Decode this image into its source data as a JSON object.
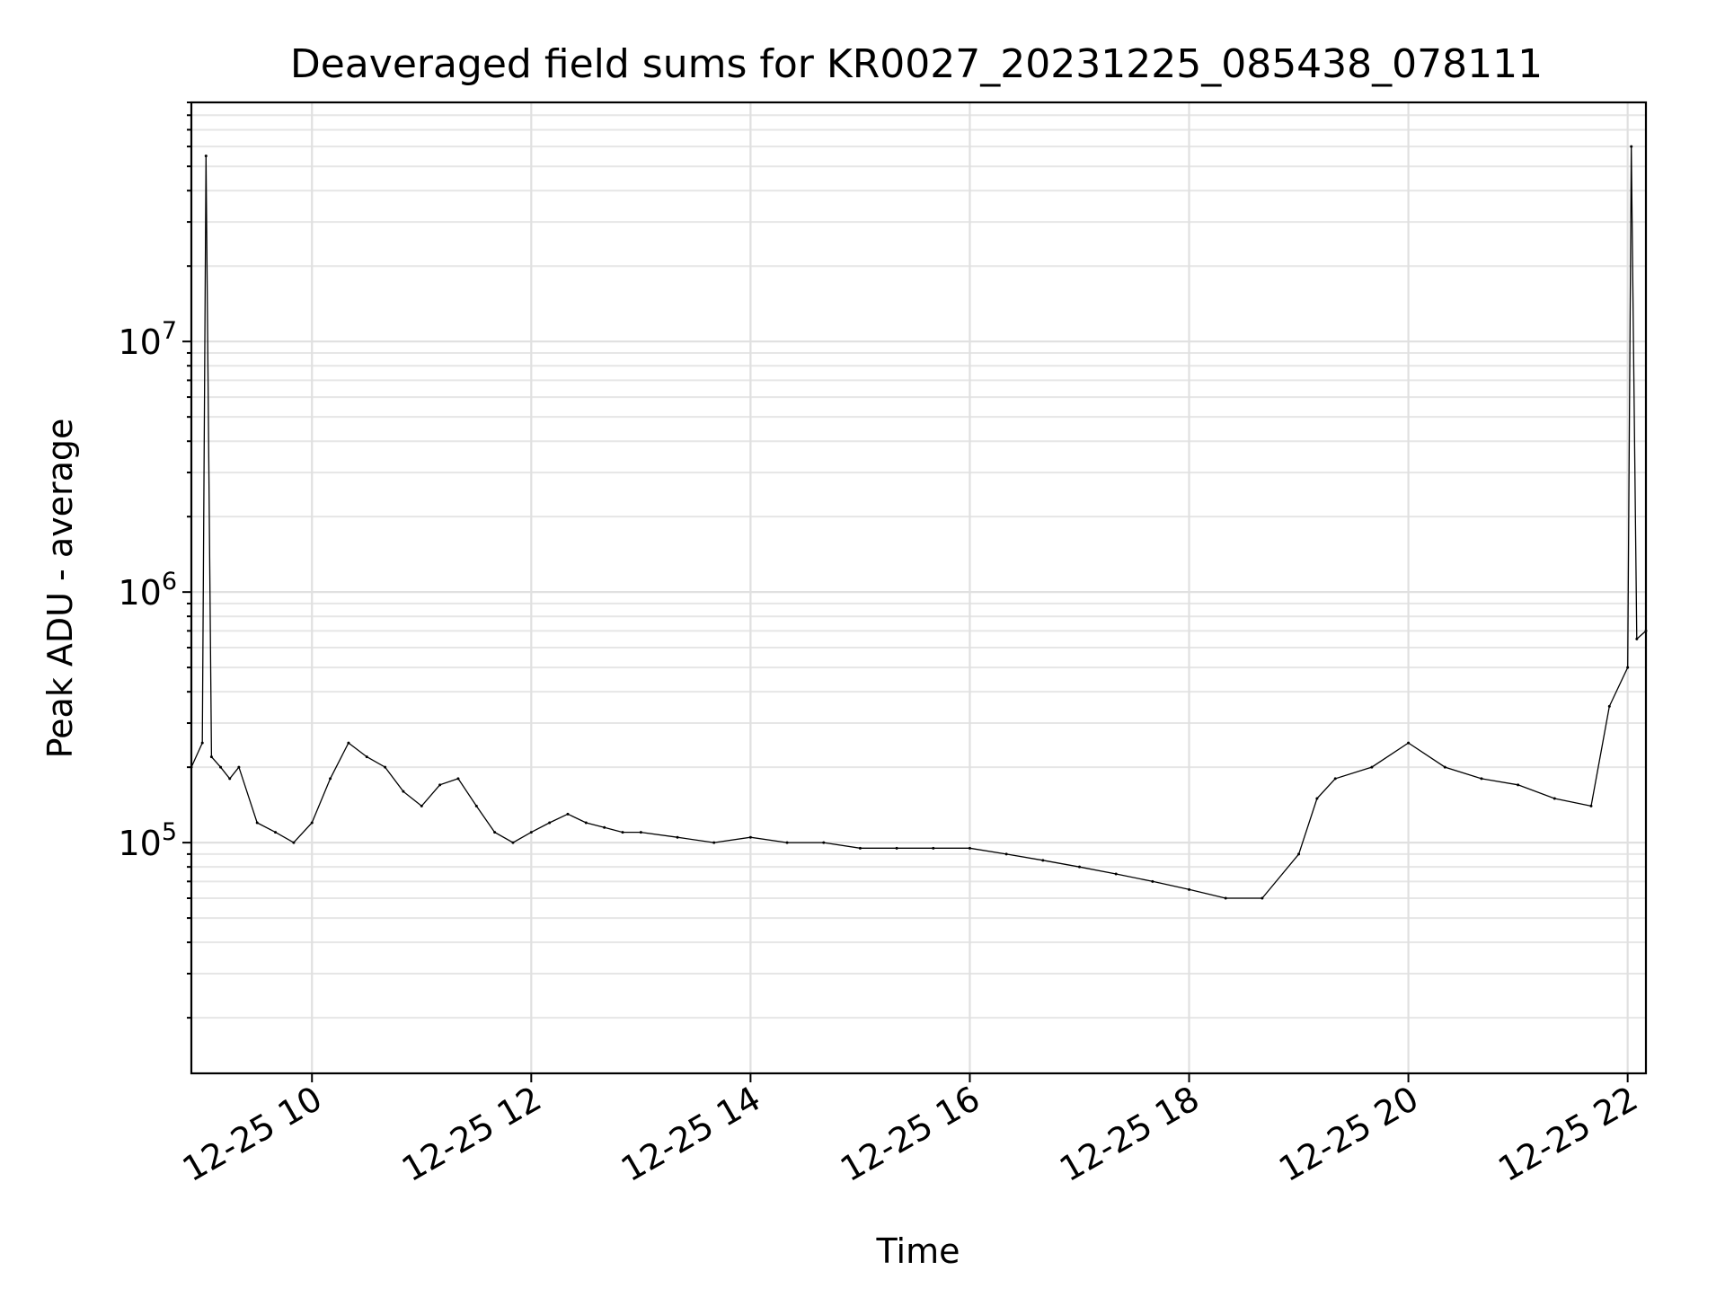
{
  "chart_data": {
    "type": "line",
    "title": "Deaveraged field sums for KR0027_20231225_085438_078111",
    "xlabel": "Time",
    "ylabel": "Peak ADU - average",
    "yscale": "log",
    "x_range": [
      "12-25 08:54",
      "12-25 22:10"
    ],
    "ylim": [
      12000,
      90000000
    ],
    "grid": "on (major and minor)",
    "legend": "none",
    "line_color": "#000000",
    "x_ticks": [
      {
        "x": "12-25 10:00",
        "label": "12-25 10"
      },
      {
        "x": "12-25 12:00",
        "label": "12-25 12"
      },
      {
        "x": "12-25 14:00",
        "label": "12-25 14"
      },
      {
        "x": "12-25 16:00",
        "label": "12-25 16"
      },
      {
        "x": "12-25 18:00",
        "label": "12-25 18"
      },
      {
        "x": "12-25 20:00",
        "label": "12-25 20"
      },
      {
        "x": "12-25 22:00",
        "label": "12-25 22"
      }
    ],
    "y_ticks": [
      {
        "value": 100000,
        "base": "10",
        "exp": "5"
      },
      {
        "value": 1000000,
        "base": "10",
        "exp": "6"
      },
      {
        "value": 10000000,
        "base": "10",
        "exp": "7"
      }
    ],
    "series": [
      {
        "x": [
          "12-25 08:54",
          "12-25 09:00",
          "12-25 09:02",
          "12-25 09:05",
          "12-25 09:10",
          "12-25 09:15",
          "12-25 09:20",
          "12-25 09:30",
          "12-25 09:40",
          "12-25 09:50",
          "12-25 10:00",
          "12-25 10:10",
          "12-25 10:20",
          "12-25 10:30",
          "12-25 10:40",
          "12-25 10:50",
          "12-25 11:00",
          "12-25 11:10",
          "12-25 11:20",
          "12-25 11:30",
          "12-25 11:40",
          "12-25 11:50",
          "12-25 12:00",
          "12-25 12:10",
          "12-25 12:20",
          "12-25 12:30",
          "12-25 12:40",
          "12-25 12:50",
          "12-25 13:00",
          "12-25 13:20",
          "12-25 13:40",
          "12-25 14:00",
          "12-25 14:20",
          "12-25 14:40",
          "12-25 15:00",
          "12-25 15:20",
          "12-25 15:40",
          "12-25 16:00",
          "12-25 16:20",
          "12-25 16:40",
          "12-25 17:00",
          "12-25 17:20",
          "12-25 17:40",
          "12-25 18:00",
          "12-25 18:20",
          "12-25 18:40",
          "12-25 19:00",
          "12-25 19:10",
          "12-25 19:20",
          "12-25 19:40",
          "12-25 20:00",
          "12-25 20:20",
          "12-25 20:40",
          "12-25 21:00",
          "12-25 21:20",
          "12-25 21:40",
          "12-25 21:50",
          "12-25 22:00",
          "12-25 22:02",
          "12-25 22:05",
          "12-25 22:10"
        ],
        "values": [
          200000,
          250000,
          55000000,
          220000,
          200000,
          180000,
          200000,
          120000,
          110000,
          100000,
          120000,
          180000,
          250000,
          220000,
          200000,
          160000,
          140000,
          170000,
          180000,
          140000,
          110000,
          100000,
          110000,
          120000,
          130000,
          120000,
          115000,
          110000,
          110000,
          105000,
          100000,
          105000,
          100000,
          100000,
          95000,
          95000,
          95000,
          95000,
          90000,
          85000,
          80000,
          75000,
          70000,
          65000,
          60000,
          60000,
          90000,
          150000,
          180000,
          200000,
          250000,
          200000,
          180000,
          170000,
          150000,
          140000,
          350000,
          500000,
          60000000,
          650000,
          700000
        ]
      }
    ]
  }
}
